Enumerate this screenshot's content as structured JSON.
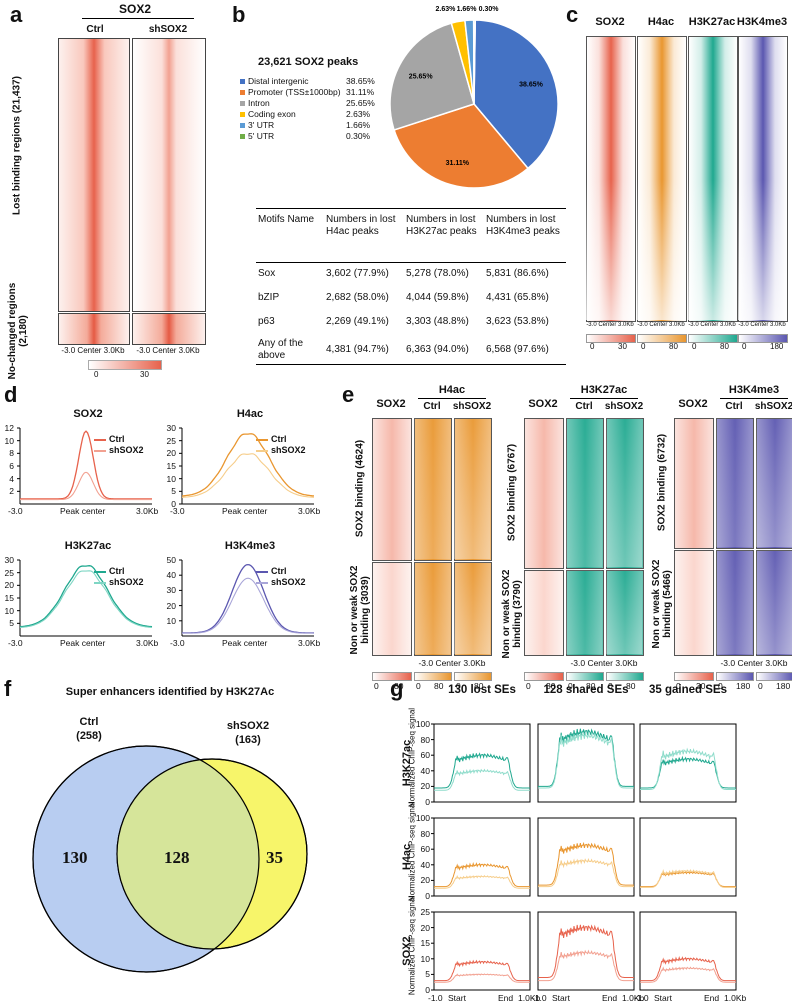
{
  "panel_labels": {
    "a": "a",
    "b": "b",
    "c": "c",
    "d": "d",
    "e": "e",
    "f": "f",
    "g": "g"
  },
  "colors": {
    "sox2": "#e7624c",
    "h4ac": "#e9962f",
    "h3k27ac": "#1fa88f",
    "h3k4me3": "#5b57b0",
    "venn_ctrl": "#b8cdf1",
    "venn_sh": "#f7f56a",
    "venn_overlap": "#d6e59a"
  },
  "a": {
    "title": "SOX2",
    "col1": "Ctrl",
    "col2": "shSOX2",
    "lost_label": "Lost binding regions (21,437)",
    "nochange_label": "No-changed regions (2,180)",
    "x_axis": "-3.0 Center 3.0Kb",
    "scale_min": "0",
    "scale_max": "30"
  },
  "b": {
    "title": "23,621 SOX2 peaks",
    "legend": [
      {
        "label": "Distal intergenic",
        "pct": "38.65%"
      },
      {
        "label": "Promoter (TSS±1000bp)",
        "pct": "31.11%"
      },
      {
        "label": "Intron",
        "pct": "25.65%"
      },
      {
        "label": "Coding exon",
        "pct": "2.63%"
      },
      {
        "label": "3' UTR",
        "pct": "1.66%"
      },
      {
        "label": "5' UTR",
        "pct": "0.30%"
      }
    ],
    "table": {
      "headers": [
        "Motifs Name",
        "Numbers in lost H4ac peaks",
        "Numbers in lost H3K27ac peaks",
        "Numbers in lost H3K4me3 peaks"
      ],
      "rows": [
        [
          "Sox",
          "3,602 (77.9%)",
          "5,278 (78.0%)",
          "5,831 (86.6%)"
        ],
        [
          "bZIP",
          "2,682 (58.0%)",
          "4,044 (59.8%)",
          "4,431 (65.8%)"
        ],
        [
          "p63",
          "2,269 (49.1%)",
          "3,303 (48.8%)",
          "3,623 (53.8%)"
        ],
        [
          "Any of the above",
          "4,381 (94.7%)",
          "6,363 (94.0%)",
          "6,568 (97.6%)"
        ]
      ]
    }
  },
  "c": {
    "cols": [
      "SOX2",
      "H4ac",
      "H3K27ac",
      "H3K4me3"
    ],
    "x_axis": "-3.0 Center 3.0Kb",
    "scales": [
      [
        "0",
        "30"
      ],
      [
        "0",
        "80"
      ],
      [
        "0",
        "80"
      ],
      [
        "0",
        "180"
      ]
    ]
  },
  "d": {
    "x_left": "-3.0",
    "x_mid": "Peak center",
    "x_right": "3.0Kb",
    "legend": [
      "Ctrl",
      "shSOX2"
    ]
  },
  "e": {
    "groups": [
      "H4ac",
      "H3K27ac",
      "H3K4me3"
    ],
    "sox2_col": "SOX2",
    "ctrl": "Ctrl",
    "sh": "shSOX2",
    "binding_labels": [
      "SOX2 binding (4624)",
      "SOX2 binding (6767)",
      "SOX2 binding (6732)"
    ],
    "nonbinding_labels": [
      "Non or weak SOX2 binding (3039)",
      "Non or weak SOX2 binding (3790)",
      "Non or weak SOX2 binding (5466)"
    ],
    "x_axis": "-3.0 Center 3.0Kb",
    "scales": [
      [
        "0",
        "30",
        "0",
        "80",
        "0",
        "80"
      ],
      [
        "0",
        "30",
        "0",
        "80",
        "0",
        "80"
      ],
      [
        "0",
        "30",
        "0",
        "180",
        "0",
        "180"
      ]
    ]
  },
  "f": {
    "title": "Super enhancers identified by H3K27Ac",
    "ctrl_label": "Ctrl",
    "ctrl_count": "(258)",
    "sh_label": "shSOX2",
    "sh_count": "(163)",
    "only_ctrl": "130",
    "shared": "128",
    "only_sh": "35"
  },
  "g": {
    "col_titles": [
      "130 lost SEs",
      "128 shared SEs",
      "35 gained SEs"
    ],
    "row_marks": [
      "H3K27ac",
      "H4ac",
      "SOX2"
    ],
    "ylabel": "Normalized ChIP-seq signal",
    "x_ticks": [
      "-1.0",
      "Start",
      "End",
      "1.0Kb"
    ]
  },
  "chart_data": [
    {
      "type": "line",
      "title": "SOX2",
      "xlabel": "",
      "ylabel": "",
      "x": [
        "-3.0",
        "Peak center",
        "3.0Kb"
      ],
      "ylim": [
        0,
        12
      ],
      "yticks": [
        "2",
        "4",
        "6",
        "8",
        "10",
        "12"
      ],
      "series": [
        {
          "name": "Ctrl",
          "peak": 11.5,
          "base": 0.8
        },
        {
          "name": "shSOX2",
          "peak": 5.0,
          "base": 0.7
        }
      ]
    },
    {
      "type": "line",
      "title": "H4ac",
      "x": [
        "-3.0",
        "Peak center",
        "3.0Kb"
      ],
      "ylim": [
        0,
        30
      ],
      "yticks": [
        "0",
        "5",
        "10",
        "15",
        "20",
        "25",
        "30"
      ],
      "series": [
        {
          "name": "Ctrl",
          "peak": 28.0,
          "base": 3.0
        },
        {
          "name": "shSOX2",
          "peak": 20.0,
          "base": 2.5
        }
      ]
    },
    {
      "type": "line",
      "title": "H3K27ac",
      "x": [
        "-3.0",
        "Peak center",
        "3.0Kb"
      ],
      "ylim": [
        0,
        30
      ],
      "yticks": [
        "5",
        "10",
        "15",
        "20",
        "25",
        "30"
      ],
      "series": [
        {
          "name": "Ctrl",
          "peak": 28.0,
          "base": 3.5
        },
        {
          "name": "shSOX2",
          "peak": 26.0,
          "base": 3.2
        }
      ]
    },
    {
      "type": "line",
      "title": "H3K4me3",
      "x": [
        "-3.0",
        "Peak center",
        "3.0Kb"
      ],
      "ylim": [
        0,
        50
      ],
      "yticks": [
        "10",
        "20",
        "30",
        "40",
        "50"
      ],
      "series": [
        {
          "name": "Ctrl",
          "peak": 47.0,
          "base": 2.0
        },
        {
          "name": "shSOX2",
          "peak": 38.0,
          "base": 1.8
        }
      ]
    },
    {
      "type": "pie",
      "title": "23,621 SOX2 peaks",
      "labels": [
        "Distal intergenic",
        "Promoter (TSS±1000bp)",
        "Intron",
        "Coding exon",
        "3' UTR",
        "5' UTR"
      ],
      "values": [
        38.65,
        31.11,
        25.65,
        2.63,
        1.66,
        0.3
      ],
      "colors": [
        "#4472c4",
        "#ed7d31",
        "#a5a5a5",
        "#ffc000",
        "#5b9bd5",
        "#70ad47"
      ]
    },
    {
      "type": "line",
      "title": "130 lost SEs",
      "row": "H3K27ac",
      "ylim": [
        0,
        100
      ],
      "yticks": [
        "0",
        "20",
        "40",
        "60",
        "80",
        "100"
      ],
      "series": [
        {
          "name": "Ctrl",
          "peak": 60,
          "base": 18
        },
        {
          "name": "shSOX2",
          "peak": 40,
          "base": 15
        }
      ]
    },
    {
      "type": "line",
      "title": "128 shared SEs",
      "row": "H3K27ac",
      "ylim": [
        0,
        100
      ],
      "series": [
        {
          "name": "Ctrl",
          "peak": 90,
          "base": 20
        },
        {
          "name": "shSOX2",
          "peak": 85,
          "base": 18
        }
      ]
    },
    {
      "type": "line",
      "title": "35 gained SEs",
      "row": "H3K27ac",
      "ylim": [
        0,
        100
      ],
      "series": [
        {
          "name": "Ctrl",
          "peak": 55,
          "base": 18
        },
        {
          "name": "shSOX2",
          "peak": 65,
          "base": 16
        }
      ]
    },
    {
      "type": "line",
      "title": "130 lost SEs",
      "row": "H4ac",
      "ylim": [
        0,
        100
      ],
      "yticks": [
        "0",
        "20",
        "40",
        "60",
        "80",
        "100"
      ],
      "series": [
        {
          "name": "Ctrl",
          "peak": 40,
          "base": 12
        },
        {
          "name": "shSOX2",
          "peak": 25,
          "base": 10
        }
      ]
    },
    {
      "type": "line",
      "title": "128 shared SEs",
      "row": "H4ac",
      "ylim": [
        0,
        100
      ],
      "series": [
        {
          "name": "Ctrl",
          "peak": 65,
          "base": 14
        },
        {
          "name": "shSOX2",
          "peak": 45,
          "base": 12
        }
      ]
    },
    {
      "type": "line",
      "title": "35 gained SEs",
      "row": "H4ac",
      "ylim": [
        0,
        100
      ],
      "series": [
        {
          "name": "Ctrl",
          "peak": 30,
          "base": 12
        },
        {
          "name": "shSOX2",
          "peak": 32,
          "base": 11
        }
      ]
    },
    {
      "type": "line",
      "title": "130 lost SEs",
      "row": "SOX2",
      "ylim": [
        0,
        25
      ],
      "yticks": [
        "0",
        "5",
        "10",
        "15",
        "20",
        "25"
      ],
      "series": [
        {
          "name": "Ctrl",
          "peak": 9,
          "base": 3
        },
        {
          "name": "shSOX2",
          "peak": 5,
          "base": 2.5
        }
      ]
    },
    {
      "type": "line",
      "title": "128 shared SEs",
      "row": "SOX2",
      "ylim": [
        0,
        25
      ],
      "series": [
        {
          "name": "Ctrl",
          "peak": 20,
          "base": 4
        },
        {
          "name": "shSOX2",
          "peak": 12,
          "base": 3
        }
      ]
    },
    {
      "type": "line",
      "title": "35 gained SEs",
      "row": "SOX2",
      "ylim": [
        0,
        25
      ],
      "series": [
        {
          "name": "Ctrl",
          "peak": 10,
          "base": 3
        },
        {
          "name": "shSOX2",
          "peak": 7,
          "base": 2.5
        }
      ]
    }
  ]
}
